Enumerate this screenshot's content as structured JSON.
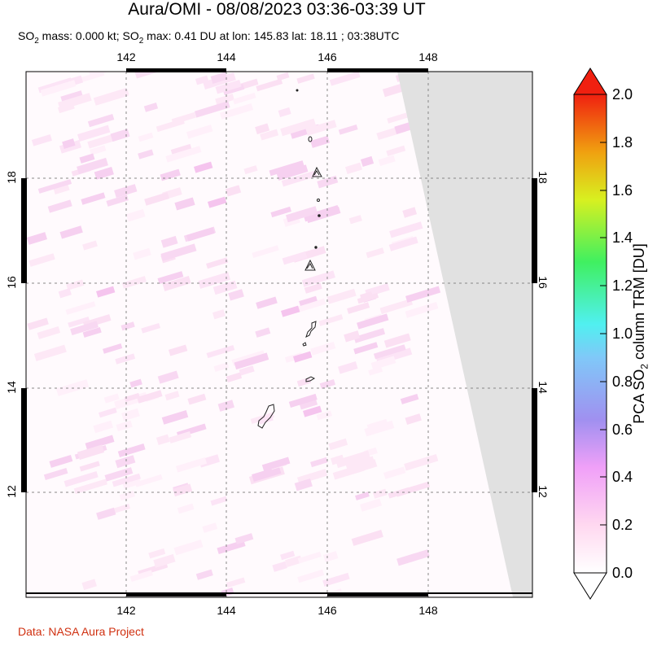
{
  "header": {
    "title": "Aura/OMI - 08/08/2023 03:36-03:39 UT",
    "subtitle_parts": [
      "SO",
      "2",
      " mass: 0.000 kt; SO",
      "2",
      " max: 0.41 DU at lon: 145.83 lat: 18.11 ; 03:38UTC"
    ]
  },
  "map": {
    "lon_range": [
      140,
      150
    ],
    "lat_range": [
      10,
      20
    ],
    "lon_ticks": [
      "142",
      "144",
      "146",
      "148"
    ],
    "lat_ticks": [
      "18",
      "16",
      "14",
      "12"
    ],
    "gridlines": true
  },
  "colorbar": {
    "title_parts": [
      "PCA SO",
      "2",
      " column TRM [DU]"
    ],
    "labels": [
      "2.0",
      "1.8",
      "1.6",
      "1.4",
      "1.2",
      "1.0",
      "0.8",
      "0.6",
      "0.4",
      "0.2",
      "0.0"
    ],
    "colors": [
      "#ffffff",
      "#ffd0f0",
      "#e090f8",
      "#9090f0",
      "#80d0f0",
      "#50f0f0",
      "#40f040",
      "#e0f020",
      "#f0a010",
      "#f04010",
      "#e01010"
    ]
  },
  "footer": {
    "credit": "Data: NASA Aura Project"
  }
}
